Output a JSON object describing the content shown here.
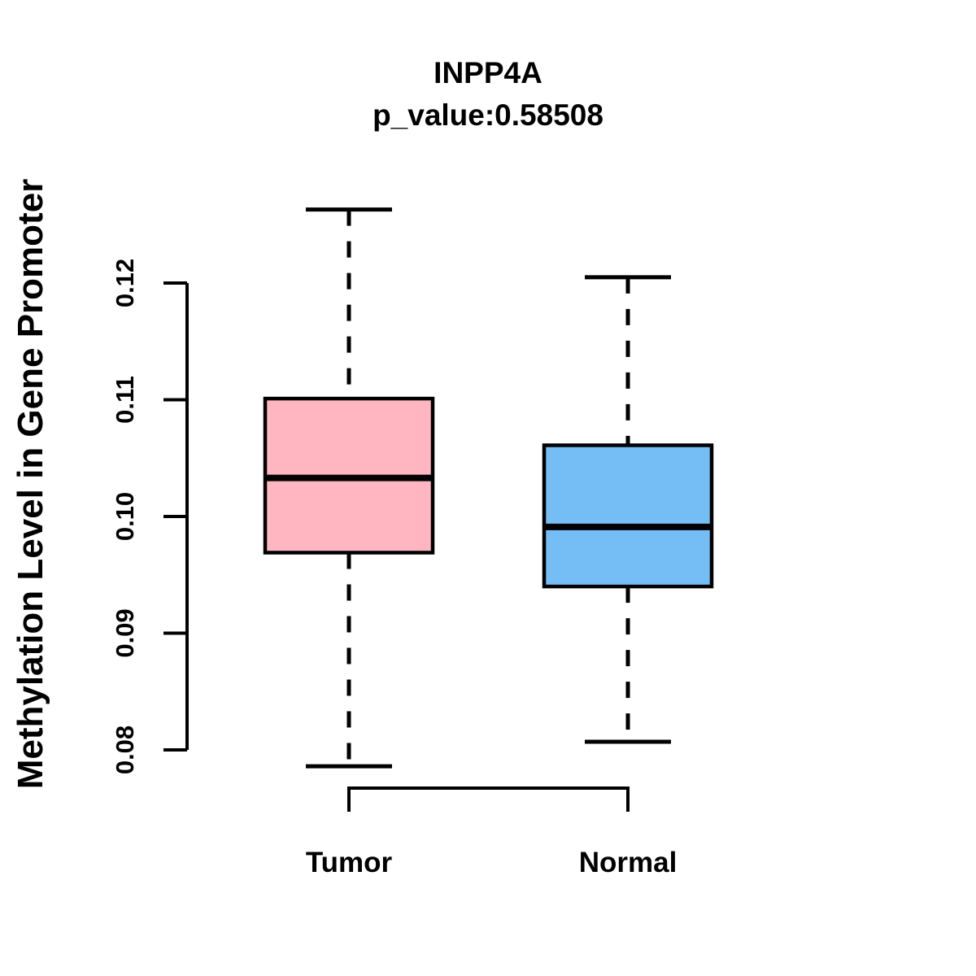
{
  "chart_data": {
    "type": "boxplot",
    "title": "INPP4A",
    "subtitle": "p_value:0.58508",
    "ylabel": "Methylation Level in Gene Promoter",
    "xlabel": "",
    "categories": [
      "Tumor",
      "Normal"
    ],
    "ylim": [
      0.08,
      0.12
    ],
    "ytick_labels": [
      "0.08",
      "0.09",
      "0.10",
      "0.11",
      "0.12"
    ],
    "grid": false,
    "legend": null,
    "axis_color": "#000000",
    "series": [
      {
        "name": "Tumor",
        "fill_color": "#FFB6C1",
        "whisker_low": 0.0786,
        "q1": 0.0969,
        "median": 0.1033,
        "q3": 0.1101,
        "whisker_high": 0.1263
      },
      {
        "name": "Normal",
        "fill_color": "#74BEF5",
        "whisker_low": 0.0807,
        "q1": 0.094,
        "median": 0.0991,
        "q3": 0.1061,
        "whisker_high": 0.1205
      }
    ]
  }
}
